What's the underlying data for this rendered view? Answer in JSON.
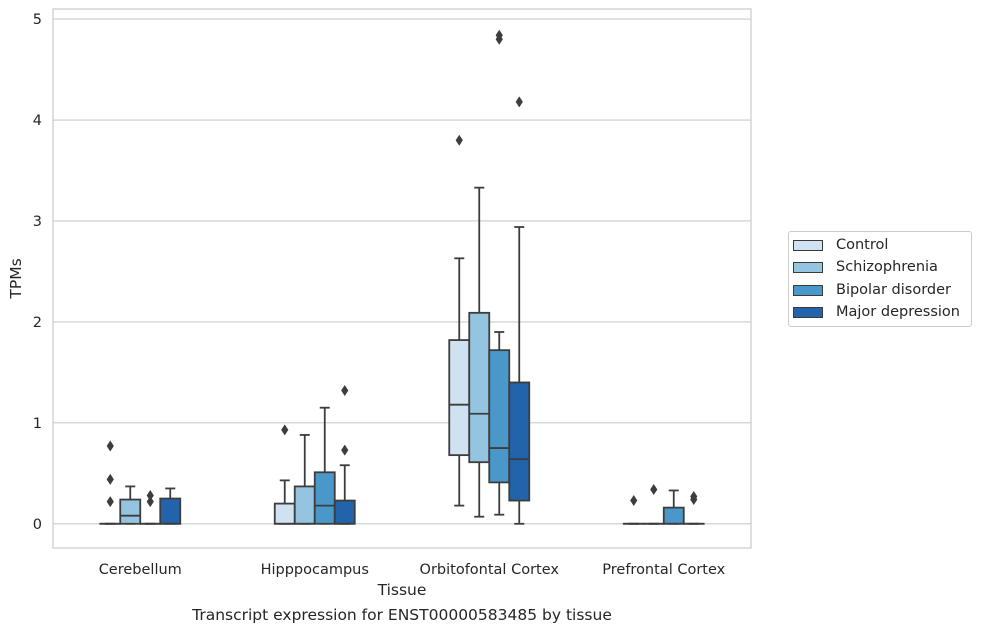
{
  "caption": "Transcript expression for ENST00000583485 by tissue",
  "chart_data": {
    "type": "box",
    "xlabel": "Tissue",
    "ylabel": "TPMs",
    "ylim": [
      -0.24,
      5.1
    ],
    "yticks": [
      0,
      1,
      2,
      3,
      4,
      5
    ],
    "grid": "horizontal",
    "legend_position": "right",
    "categories": [
      "Cerebellum",
      "Hipppocampus",
      "Orbitofontal Cortex",
      "Prefrontal Cortex"
    ],
    "series": [
      {
        "name": "Control",
        "color": "#d0e1f2",
        "boxes": [
          {
            "q1": 0,
            "median": 0,
            "q3": 0,
            "whisker_low": 0,
            "whisker_high": 0,
            "outliers": [
              0.77,
              0.44,
              0.22
            ]
          },
          {
            "q1": 0,
            "median": 0,
            "q3": 0.2,
            "whisker_low": 0,
            "whisker_high": 0.43,
            "outliers": [
              0.93
            ]
          },
          {
            "q1": 0.68,
            "median": 1.18,
            "q3": 1.82,
            "whisker_low": 0.18,
            "whisker_high": 2.63,
            "outliers": [
              3.8
            ]
          },
          {
            "q1": 0,
            "median": 0,
            "q3": 0,
            "whisker_low": 0,
            "whisker_high": 0,
            "outliers": [
              0.23
            ]
          }
        ]
      },
      {
        "name": "Schizophrenia",
        "color": "#94c4df",
        "boxes": [
          {
            "q1": 0,
            "median": 0.08,
            "q3": 0.24,
            "whisker_low": 0,
            "whisker_high": 0.37,
            "outliers": []
          },
          {
            "q1": 0,
            "median": 0,
            "q3": 0.37,
            "whisker_low": 0,
            "whisker_high": 0.88,
            "outliers": []
          },
          {
            "q1": 0.61,
            "median": 1.09,
            "q3": 2.09,
            "whisker_low": 0.07,
            "whisker_high": 3.33,
            "outliers": []
          },
          {
            "q1": 0,
            "median": 0,
            "q3": 0,
            "whisker_low": 0,
            "whisker_high": 0,
            "outliers": [
              0.34
            ]
          }
        ]
      },
      {
        "name": "Bipolar disorder",
        "color": "#4a98c9",
        "boxes": [
          {
            "q1": 0,
            "median": 0,
            "q3": 0,
            "whisker_low": 0,
            "whisker_high": 0,
            "outliers": [
              0.28,
              0.22
            ]
          },
          {
            "q1": 0,
            "median": 0.18,
            "q3": 0.51,
            "whisker_low": 0,
            "whisker_high": 1.15,
            "outliers": []
          },
          {
            "q1": 0.41,
            "median": 0.75,
            "q3": 1.72,
            "whisker_low": 0.09,
            "whisker_high": 1.9,
            "outliers": [
              4.84,
              4.8
            ]
          },
          {
            "q1": 0,
            "median": 0,
            "q3": 0.16,
            "whisker_low": 0,
            "whisker_high": 0.33,
            "outliers": []
          }
        ]
      },
      {
        "name": "Major depression",
        "color": "#2164ab",
        "boxes": [
          {
            "q1": 0,
            "median": 0,
            "q3": 0.25,
            "whisker_low": 0,
            "whisker_high": 0.35,
            "outliers": []
          },
          {
            "q1": 0,
            "median": 0,
            "q3": 0.23,
            "whisker_low": 0,
            "whisker_high": 0.58,
            "outliers": [
              1.32,
              0.73
            ]
          },
          {
            "q1": 0.23,
            "median": 0.64,
            "q3": 1.4,
            "whisker_low": 0,
            "whisker_high": 2.94,
            "outliers": [
              4.18
            ]
          },
          {
            "q1": 0,
            "median": 0,
            "q3": 0,
            "whisker_low": 0,
            "whisker_high": 0,
            "outliers": [
              0.27,
              0.24
            ]
          }
        ]
      }
    ]
  }
}
